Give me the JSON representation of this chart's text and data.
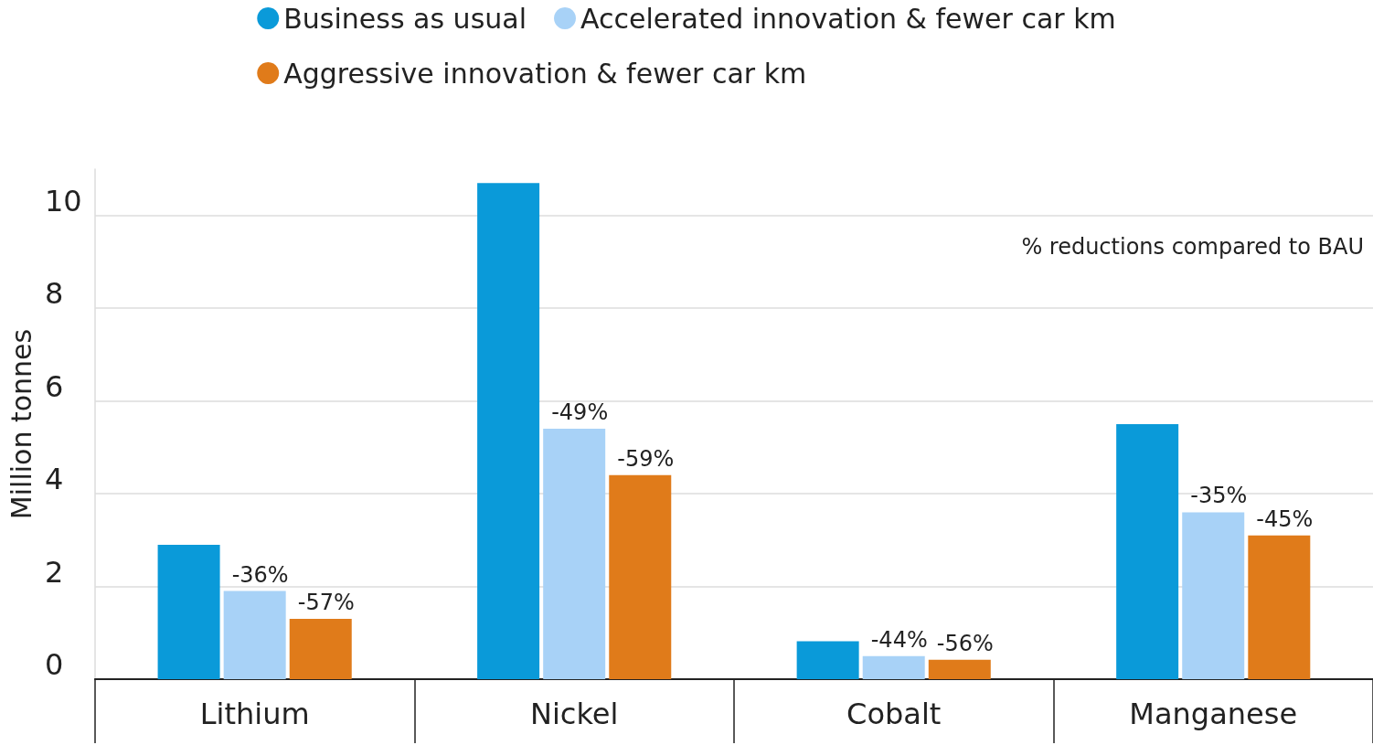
{
  "chart_data": {
    "type": "bar",
    "categories": [
      "Lithium",
      "Nickel",
      "Cobalt",
      "Manganese"
    ],
    "ylabel": "Million tonnes",
    "series": [
      {
        "name": "Business as usual",
        "color": "#0a9ad9",
        "values": [
          2.9,
          10.7,
          0.82,
          5.5
        ]
      },
      {
        "name": "Accelerated innovation & fewer car km",
        "color": "#a8d2f7",
        "values": [
          1.9,
          5.4,
          0.5,
          3.6
        ]
      },
      {
        "name": "Aggressive innovation & fewer car km",
        "color": "#e07b1a",
        "values": [
          1.3,
          4.4,
          0.42,
          3.1
        ]
      }
    ],
    "ylim": [
      0,
      11
    ],
    "yticks": [
      0,
      2,
      4,
      6,
      8,
      10
    ],
    "grid": "y",
    "legend": "top",
    "annotations": [
      "% reductions compared to BAU",
      "-36%",
      "-49%",
      "-44%",
      "-35%",
      "-57%",
      "-59%",
      "-56%",
      "-45%"
    ]
  }
}
